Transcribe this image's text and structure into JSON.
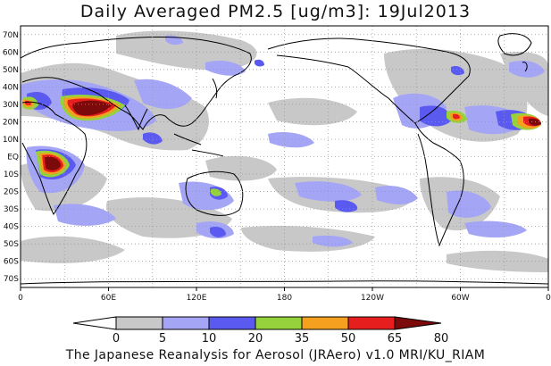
{
  "title": "Daily Averaged PM2.5 [ug/m3]: 19Jul2013",
  "footer": "The Japanese Reanalysis for Aerosol (JRAero) v1.0 MRI/KU_RIAM",
  "lat_labels": [
    "70N",
    "60N",
    "50N",
    "40N",
    "30N",
    "20N",
    "10N",
    "EQ",
    "10S",
    "20S",
    "30S",
    "40S",
    "50S",
    "60S",
    "70S"
  ],
  "lon_labels": [
    "0",
    "60E",
    "120E",
    "180",
    "120W",
    "60W",
    "0"
  ],
  "colorbar": {
    "levels": [
      "0",
      "5",
      "10",
      "20",
      "35",
      "50",
      "65",
      "80"
    ],
    "colors": [
      "#ffffff",
      "#c8c8c8",
      "#a5a5f5",
      "#5a5af0",
      "#96d23c",
      "#f5a01e",
      "#e61e1e",
      "#7d0a0a"
    ]
  }
}
